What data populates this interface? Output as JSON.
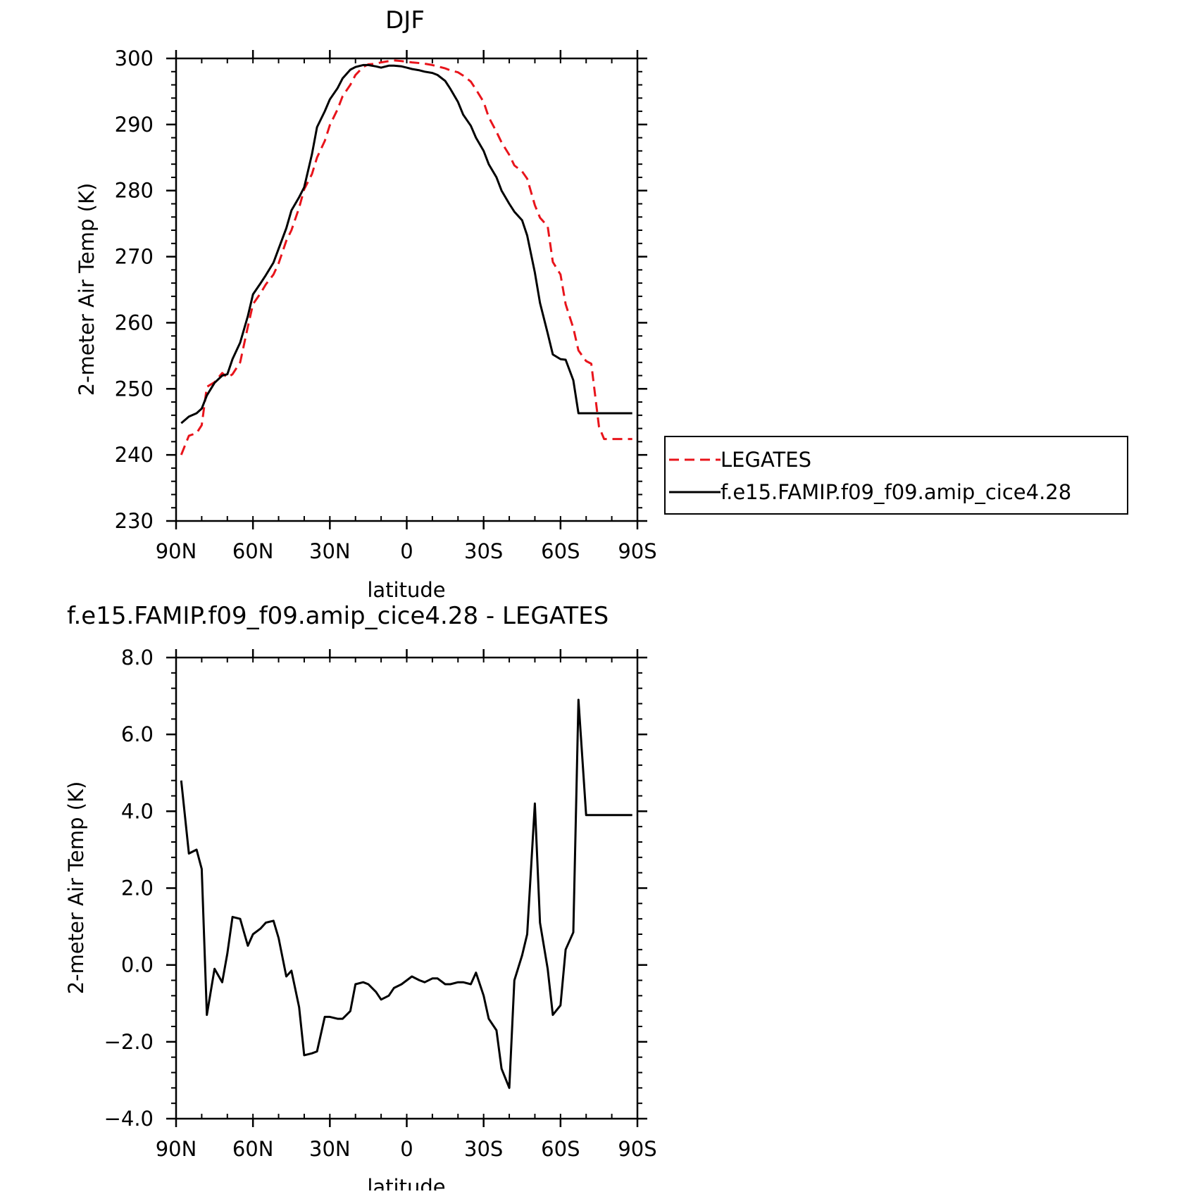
{
  "chart_data": [
    {
      "type": "line",
      "title": "DJF",
      "xlabel": "latitude",
      "ylabel": "2-meter Air Temp (K)",
      "xlim": [
        90,
        -90
      ],
      "ylim": [
        230,
        300
      ],
      "x_ticks": [
        {
          "value": 90,
          "label": "90N"
        },
        {
          "value": 60,
          "label": "60N"
        },
        {
          "value": 30,
          "label": "30N"
        },
        {
          "value": 0,
          "label": "0"
        },
        {
          "value": -30,
          "label": "30S"
        },
        {
          "value": -60,
          "label": "60S"
        },
        {
          "value": -90,
          "label": "90S"
        }
      ],
      "y_ticks": [
        {
          "value": 300,
          "label": "300"
        },
        {
          "value": 290,
          "label": "290"
        },
        {
          "value": 280,
          "label": "280"
        },
        {
          "value": 270,
          "label": "270"
        },
        {
          "value": 260,
          "label": "260"
        },
        {
          "value": 250,
          "label": "250"
        },
        {
          "value": 240,
          "label": "240"
        },
        {
          "value": 230,
          "label": "230"
        }
      ],
      "legend_position": "right",
      "series": [
        {
          "name": "LEGATES",
          "color": "#e8141b",
          "dash": "dashed",
          "x": [
            88,
            85,
            82,
            80,
            78,
            75,
            72,
            70,
            68,
            65,
            62,
            60,
            57,
            55,
            52,
            50,
            47,
            45,
            42,
            40,
            37,
            35,
            32,
            30,
            27,
            25,
            22,
            20,
            17,
            15,
            12,
            10,
            7,
            5,
            2,
            0,
            -2,
            -5,
            -7,
            -10,
            -12,
            -15,
            -17,
            -20,
            -22,
            -25,
            -27,
            -30,
            -32,
            -35,
            -37,
            -40,
            -42,
            -45,
            -47,
            -50,
            -52,
            -55,
            -57,
            -60,
            -62,
            -65,
            -67,
            -70,
            -72,
            -75,
            -77,
            -80,
            -82,
            -85,
            -88
          ],
          "y": [
            240.0,
            242.9,
            243.3,
            244.5,
            250.3,
            251.0,
            252.4,
            251.7,
            252.2,
            254.0,
            259.4,
            262.8,
            264.5,
            265.8,
            267.3,
            269.0,
            272.4,
            274.0,
            277.4,
            280.2,
            282.5,
            285.0,
            287.5,
            289.9,
            292.3,
            294.3,
            296.0,
            297.5,
            298.7,
            299.1,
            299.2,
            299.4,
            299.6,
            299.7,
            299.6,
            299.5,
            299.4,
            299.3,
            299.2,
            299.0,
            298.8,
            298.5,
            298.2,
            297.9,
            297.4,
            296.5,
            295.3,
            293.4,
            291.1,
            288.9,
            287.3,
            285.4,
            283.8,
            282.9,
            281.8,
            277.8,
            275.9,
            274.6,
            269.2,
            267.3,
            262.8,
            259.2,
            255.8,
            254.2,
            253.8,
            244.3,
            242.4,
            242.4,
            242.4,
            242.4,
            242.4
          ]
        },
        {
          "name": "f.e15.FAMIP.f09_f09.amip_cice4.28",
          "color": "#000000",
          "dash": "solid",
          "x": [
            88,
            85,
            82,
            80,
            78,
            75,
            72,
            70,
            68,
            65,
            62,
            60,
            57,
            55,
            52,
            50,
            47,
            45,
            42,
            40,
            37,
            35,
            32,
            30,
            27,
            25,
            22,
            20,
            17,
            15,
            12,
            10,
            7,
            5,
            2,
            0,
            -2,
            -5,
            -7,
            -10,
            -12,
            -15,
            -17,
            -20,
            -22,
            -25,
            -27,
            -30,
            -32,
            -35,
            -37,
            -40,
            -42,
            -45,
            -47,
            -50,
            -52,
            -55,
            -57,
            -60,
            -62,
            -65,
            -67,
            -70,
            -72,
            -75,
            -77,
            -80,
            -82,
            -85,
            -88
          ],
          "y": [
            244.8,
            245.8,
            246.3,
            247.0,
            249.0,
            250.9,
            252.0,
            252.2,
            254.5,
            257.0,
            261.0,
            264.3,
            266.0,
            267.2,
            269.1,
            271.2,
            274.3,
            277.0,
            279.0,
            280.5,
            285.5,
            289.6,
            292.0,
            293.8,
            295.5,
            297.0,
            298.3,
            298.7,
            299.0,
            299.0,
            298.8,
            298.6,
            298.9,
            298.9,
            298.8,
            298.6,
            298.4,
            298.2,
            298.0,
            297.8,
            297.5,
            296.6,
            295.4,
            293.4,
            291.5,
            289.8,
            288.0,
            286.0,
            284.0,
            282.0,
            280.0,
            278.0,
            276.8,
            275.5,
            273.2,
            267.6,
            263.0,
            258.4,
            255.2,
            254.5,
            254.4,
            251.3,
            246.3,
            246.3,
            246.3,
            246.3,
            246.3,
            246.3,
            246.3,
            246.3,
            246.3
          ]
        }
      ]
    },
    {
      "type": "line",
      "title": "f.e15.FAMIP.f09_f09.amip_cice4.28 - LEGATES",
      "xlabel": "latitude",
      "ylabel": "2-meter Air Temp (K)",
      "xlim": [
        90,
        -90
      ],
      "ylim": [
        -4,
        8
      ],
      "x_ticks": [
        {
          "value": 90,
          "label": "90N"
        },
        {
          "value": 60,
          "label": "60N"
        },
        {
          "value": 30,
          "label": "30N"
        },
        {
          "value": 0,
          "label": "0"
        },
        {
          "value": -30,
          "label": "30S"
        },
        {
          "value": -60,
          "label": "60S"
        },
        {
          "value": -90,
          "label": "90S"
        }
      ],
      "y_ticks": [
        {
          "value": 8,
          "label": "8.0"
        },
        {
          "value": 6,
          "label": "6.0"
        },
        {
          "value": 4,
          "label": "4.0"
        },
        {
          "value": 2,
          "label": "2.0"
        },
        {
          "value": 0,
          "label": "0.0"
        },
        {
          "value": -2,
          "label": "−2.0"
        },
        {
          "value": -4,
          "label": "−4.0"
        }
      ],
      "series": [
        {
          "color": "#000000",
          "dash": "solid",
          "x": [
            88,
            85,
            82,
            80,
            78,
            75,
            72,
            70,
            68,
            65,
            62,
            60,
            57,
            55,
            52,
            50,
            47,
            45,
            42,
            40,
            37,
            35,
            32,
            30,
            27,
            25,
            22,
            20,
            17,
            15,
            12,
            10,
            7,
            5,
            2,
            0,
            -2,
            -5,
            -7,
            -10,
            -12,
            -15,
            -17,
            -20,
            -22,
            -25,
            -27,
            -30,
            -32,
            -35,
            -37,
            -40,
            -42,
            -45,
            -47,
            -50,
            -52,
            -55,
            -57,
            -60,
            -62,
            -65,
            -67,
            -70,
            -72,
            -75,
            -77,
            -80,
            -82,
            -85,
            -88
          ],
          "y": [
            4.8,
            2.9,
            3.0,
            2.5,
            -1.3,
            -0.1,
            -0.45,
            0.3,
            1.25,
            1.2,
            0.5,
            0.8,
            0.95,
            1.1,
            1.15,
            0.7,
            -0.3,
            -0.15,
            -1.1,
            -2.35,
            -2.3,
            -2.25,
            -1.35,
            -1.35,
            -1.4,
            -1.4,
            -1.2,
            -0.5,
            -0.45,
            -0.5,
            -0.7,
            -0.9,
            -0.8,
            -0.6,
            -0.5,
            -0.4,
            -0.3,
            -0.4,
            -0.45,
            -0.35,
            -0.35,
            -0.5,
            -0.5,
            -0.45,
            -0.45,
            -0.5,
            -0.2,
            -0.8,
            -1.4,
            -1.7,
            -2.7,
            -3.2,
            -0.4,
            0.25,
            0.8,
            4.2,
            1.1,
            -0.1,
            -1.3,
            -1.05,
            0.4,
            0.85,
            6.9,
            3.9,
            3.9,
            3.9,
            3.9,
            3.9,
            3.9,
            3.9,
            3.9
          ]
        }
      ]
    }
  ]
}
